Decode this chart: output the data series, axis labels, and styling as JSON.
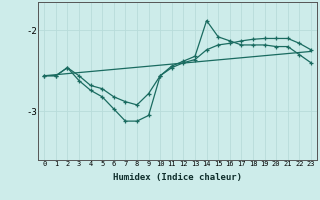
{
  "xlabel": "Humidex (Indice chaleur)",
  "x_ticks": [
    0,
    1,
    2,
    3,
    4,
    5,
    6,
    7,
    8,
    9,
    10,
    11,
    12,
    13,
    14,
    15,
    16,
    17,
    18,
    19,
    20,
    21,
    22,
    23
  ],
  "xlim": [
    -0.5,
    23.5
  ],
  "ylim": [
    -3.6,
    -1.65
  ],
  "yticks": [
    -3,
    -2
  ],
  "bg_color": "#cdecea",
  "line_color": "#1a6b60",
  "grid_color": "#b8dcda",
  "series1_x": [
    0,
    1,
    2,
    3,
    4,
    5,
    6,
    7,
    8,
    9,
    10,
    11,
    12,
    13,
    14,
    15,
    16,
    17,
    18,
    19,
    20,
    21,
    22,
    23
  ],
  "series1_y": [
    -2.56,
    -2.56,
    -2.46,
    -2.62,
    -2.74,
    -2.82,
    -2.97,
    -3.12,
    -3.12,
    -3.05,
    -2.56,
    -2.44,
    -2.38,
    -2.32,
    -1.88,
    -2.08,
    -2.13,
    -2.18,
    -2.18,
    -2.18,
    -2.2,
    -2.2,
    -2.3,
    -2.4
  ],
  "series2_x": [
    0,
    1,
    2,
    3,
    4,
    5,
    6,
    7,
    8,
    9,
    10,
    11,
    12,
    13,
    14,
    15,
    16,
    17,
    18,
    19,
    20,
    21,
    22,
    23
  ],
  "series2_y": [
    -2.56,
    -2.56,
    -2.46,
    -2.56,
    -2.68,
    -2.72,
    -2.82,
    -2.88,
    -2.92,
    -2.78,
    -2.56,
    -2.46,
    -2.4,
    -2.36,
    -2.24,
    -2.18,
    -2.16,
    -2.13,
    -2.11,
    -2.1,
    -2.1,
    -2.1,
    -2.16,
    -2.24
  ],
  "series3_x": [
    0,
    23
  ],
  "series3_y": [
    -2.56,
    -2.26
  ]
}
